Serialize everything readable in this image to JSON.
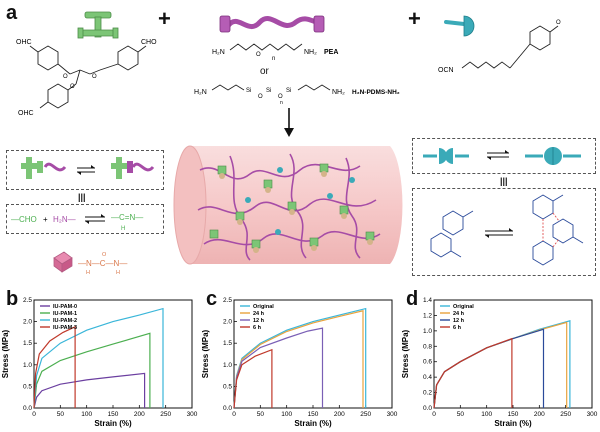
{
  "panel_a": {
    "letter": "a",
    "plus": "+",
    "cho_label": "OHC",
    "cho_label2": "CHO",
    "amine_left": "H₂N",
    "amine_right": "NH₂",
    "n_label": "n",
    "pea_label": "PEA",
    "or_label": "or",
    "pdms_label": "H₂N-PDMS-NH₂",
    "si_label": "Si",
    "o_label": "O",
    "ocn_label": "OCN",
    "equilibrium_left": "|||",
    "equilibrium_right": "|||",
    "reaction_cho": "—CHO",
    "reaction_plus": "+",
    "reaction_h2n": "H₂N—",
    "reaction_imine": "—C=N—",
    "reaction_h": "H",
    "urea_label": "—N—C—N—",
    "urea_h": "H",
    "urea_o": "O",
    "colors": {
      "green": "#7cc576",
      "purple": "#a64ca6",
      "pink_cyl": "#f4c6c6",
      "teal": "#3aaab8",
      "blue_struct": "#2a4a9a",
      "orange_urea": "#d9774a"
    }
  },
  "charts": [
    {
      "letter": "b",
      "chart_data": {
        "type": "line",
        "xlabel": "Strain (%)",
        "ylabel": "Stress (MPa)",
        "xlim": [
          0,
          300
        ],
        "ylim": [
          0,
          2.5
        ],
        "xticks": [
          "0",
          "50",
          "100",
          "150",
          "200",
          "250",
          "300"
        ],
        "yticks": [
          "0.0",
          "0.5",
          "1.0",
          "1.5",
          "2.0",
          "2.5"
        ],
        "legend_position": "top-left",
        "series": [
          {
            "name": "IU-PAM-0",
            "color": "#6b3fa0",
            "points": [
              [
                0,
                0
              ],
              [
                5,
                0.25
              ],
              [
                15,
                0.4
              ],
              [
                50,
                0.55
              ],
              [
                100,
                0.65
              ],
              [
                150,
                0.72
              ],
              [
                210,
                0.8
              ],
              [
                210,
                0
              ]
            ]
          },
          {
            "name": "IU-PAM-1",
            "color": "#4caf50",
            "points": [
              [
                0,
                0
              ],
              [
                5,
                0.55
              ],
              [
                15,
                0.85
              ],
              [
                50,
                1.1
              ],
              [
                100,
                1.3
              ],
              [
                150,
                1.48
              ],
              [
                220,
                1.73
              ],
              [
                220,
                0
              ]
            ]
          },
          {
            "name": "IU-PAM-2",
            "color": "#3ab6d9",
            "points": [
              [
                0,
                0
              ],
              [
                5,
                0.75
              ],
              [
                15,
                1.15
              ],
              [
                50,
                1.5
              ],
              [
                100,
                1.8
              ],
              [
                150,
                2.0
              ],
              [
                200,
                2.15
              ],
              [
                245,
                2.3
              ],
              [
                245,
                0
              ]
            ]
          },
          {
            "name": "IU-PAM-3",
            "color": "#c0392b",
            "points": [
              [
                0,
                0
              ],
              [
                3,
                0.8
              ],
              [
                10,
                1.25
              ],
              [
                30,
                1.55
              ],
              [
                55,
                1.75
              ],
              [
                78,
                1.88
              ],
              [
                78,
                0
              ]
            ]
          }
        ]
      }
    },
    {
      "letter": "c",
      "chart_data": {
        "type": "line",
        "xlabel": "Strain (%)",
        "ylabel": "Stress (MPa)",
        "xlim": [
          0,
          300
        ],
        "ylim": [
          0,
          2.5
        ],
        "xticks": [
          "0",
          "50",
          "100",
          "150",
          "200",
          "250",
          "300"
        ],
        "yticks": [
          "0.0",
          "0.5",
          "1.0",
          "1.5",
          "2.0",
          "2.5"
        ],
        "legend_position": "top-left",
        "series": [
          {
            "name": "Original",
            "color": "#3ab6d9",
            "points": [
              [
                0,
                0
              ],
              [
                5,
                0.75
              ],
              [
                15,
                1.15
              ],
              [
                50,
                1.5
              ],
              [
                100,
                1.8
              ],
              [
                150,
                2.0
              ],
              [
                200,
                2.15
              ],
              [
                250,
                2.3
              ],
              [
                250,
                0
              ]
            ]
          },
          {
            "name": "24 h",
            "color": "#e8a33d",
            "points": [
              [
                0,
                0
              ],
              [
                5,
                0.72
              ],
              [
                15,
                1.12
              ],
              [
                50,
                1.47
              ],
              [
                100,
                1.77
              ],
              [
                150,
                1.97
              ],
              [
                200,
                2.12
              ],
              [
                245,
                2.25
              ],
              [
                245,
                0
              ]
            ]
          },
          {
            "name": "12 h",
            "color": "#7a5fb5",
            "points": [
              [
                0,
                0
              ],
              [
                5,
                0.7
              ],
              [
                15,
                1.08
              ],
              [
                50,
                1.4
              ],
              [
                100,
                1.62
              ],
              [
                140,
                1.78
              ],
              [
                168,
                1.85
              ],
              [
                168,
                0
              ]
            ]
          },
          {
            "name": "6 h",
            "color": "#c0392b",
            "points": [
              [
                0,
                0
              ],
              [
                5,
                0.65
              ],
              [
                15,
                1.0
              ],
              [
                40,
                1.2
              ],
              [
                72,
                1.35
              ],
              [
                72,
                0
              ]
            ]
          }
        ]
      }
    },
    {
      "letter": "d",
      "chart_data": {
        "type": "line",
        "xlabel": "Strain (%)",
        "ylabel": "Stress (MPa)",
        "xlim": [
          0,
          300
        ],
        "ylim": [
          0,
          1.4
        ],
        "xticks": [
          "0",
          "50",
          "100",
          "150",
          "200",
          "250",
          "300"
        ],
        "yticks": [
          "0.0",
          "0.2",
          "0.4",
          "0.6",
          "0.8",
          "1.0",
          "1.2",
          "1.4"
        ],
        "legend_position": "top-left",
        "series": [
          {
            "name": "Original",
            "color": "#3ab6d9",
            "points": [
              [
                0,
                0
              ],
              [
                5,
                0.3
              ],
              [
                20,
                0.47
              ],
              [
                50,
                0.6
              ],
              [
                100,
                0.78
              ],
              [
                150,
                0.9
              ],
              [
                200,
                1.02
              ],
              [
                258,
                1.13
              ],
              [
                258,
                0
              ]
            ]
          },
          {
            "name": "24 h",
            "color": "#e8a33d",
            "points": [
              [
                0,
                0
              ],
              [
                5,
                0.3
              ],
              [
                20,
                0.47
              ],
              [
                50,
                0.6
              ],
              [
                100,
                0.78
              ],
              [
                150,
                0.9
              ],
              [
                200,
                1.01
              ],
              [
                252,
                1.11
              ],
              [
                252,
                0
              ]
            ]
          },
          {
            "name": "12 h",
            "color": "#2a4a9a",
            "points": [
              [
                0,
                0
              ],
              [
                5,
                0.3
              ],
              [
                20,
                0.47
              ],
              [
                50,
                0.6
              ],
              [
                100,
                0.78
              ],
              [
                150,
                0.9
              ],
              [
                208,
                1.02
              ],
              [
                208,
                0
              ]
            ]
          },
          {
            "name": "6 h",
            "color": "#c0392b",
            "points": [
              [
                0,
                0
              ],
              [
                5,
                0.3
              ],
              [
                20,
                0.47
              ],
              [
                50,
                0.6
              ],
              [
                100,
                0.78
              ],
              [
                148,
                0.9
              ],
              [
                148,
                0
              ]
            ]
          }
        ]
      }
    }
  ]
}
